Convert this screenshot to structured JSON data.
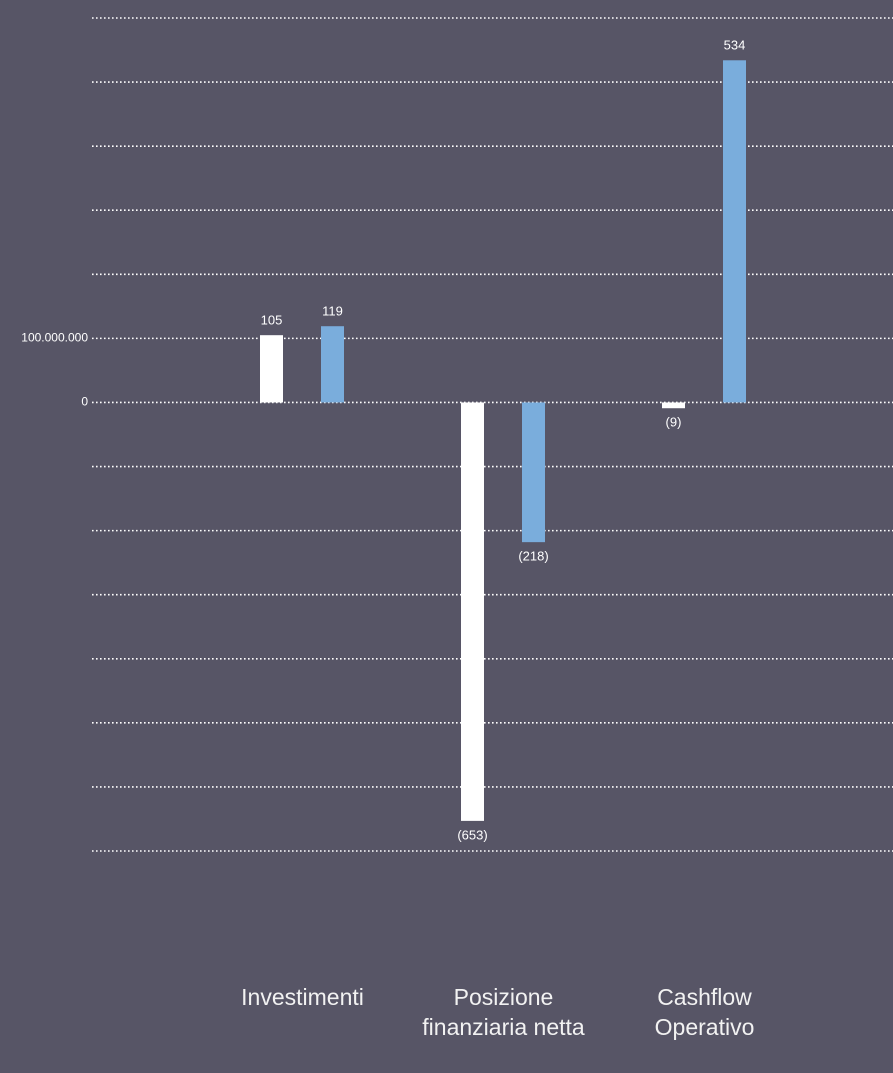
{
  "chart_data": {
    "type": "bar",
    "categories": [
      "Investimenti",
      "Posizione\nfinanziaria netta",
      "Cashflow\nOperativo"
    ],
    "series": [
      {
        "color": "#ffffff",
        "values": [
          105000000,
          -653000000,
          -9000000
        ],
        "value_labels": [
          "105",
          "(653)",
          "(9)"
        ]
      },
      {
        "color": "#7aaddc",
        "values": [
          119000000,
          -218000000,
          534000000
        ],
        "value_labels": [
          "119",
          "(218)",
          "534"
        ]
      }
    ],
    "ylim": [
      -700000000,
      600000000
    ],
    "yticks": [
      0,
      {
        "value": 100000000,
        "label": "100.000.000"
      }
    ],
    "grid": true
  }
}
